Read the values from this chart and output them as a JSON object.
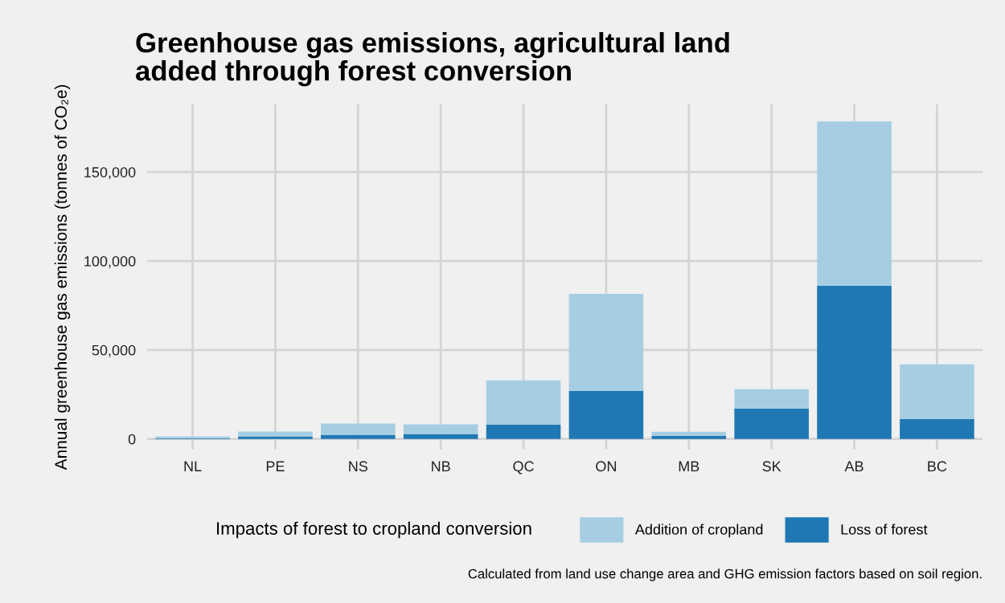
{
  "chart_data": {
    "type": "bar",
    "title": "Greenhouse gas emissions, agricultural land\nadded through forest conversion",
    "ylabel": "Annual greenhouse gas emissions (tonnes of CO₂e)",
    "legend_title": "Impacts of forest to cropland conversion",
    "categories": [
      "NL",
      "PE",
      "NS",
      "NB",
      "QC",
      "ON",
      "MB",
      "SK",
      "AB",
      "BC"
    ],
    "stacked": true,
    "series": [
      {
        "name": "Loss of forest",
        "color": "#1f78b4",
        "values": [
          300,
          1500,
          2400,
          2800,
          8100,
          27000,
          1800,
          17100,
          86000,
          11300
        ]
      },
      {
        "name": "Addition of cropland",
        "color": "#a6cee3",
        "values": [
          1200,
          2700,
          6300,
          5400,
          24800,
          54500,
          2200,
          10800,
          92400,
          30600
        ]
      }
    ],
    "ylim": [
      -6000,
      188000
    ],
    "yticks": [
      {
        "value": 0,
        "label": "0"
      },
      {
        "value": 50000,
        "label": "50,000"
      },
      {
        "value": 100000,
        "label": "100,000"
      },
      {
        "value": 150000,
        "label": "150,000"
      }
    ],
    "grid": true,
    "legend": "bottom",
    "annotations": [
      "Calculated from land use change area and GHG emission factors based on soil region."
    ]
  }
}
